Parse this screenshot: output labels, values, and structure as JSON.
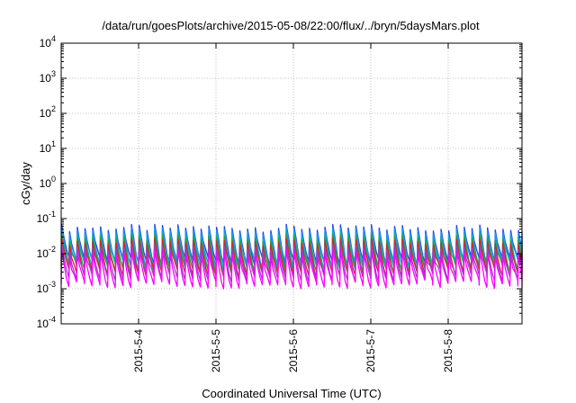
{
  "chart_data": {
    "type": "line",
    "title": "/data/run/goesPlots/archive/2015-05-08/22:00/flux/../bryn/5daysMars.plot",
    "xlabel": "Coordinated Universal Time (UTC)",
    "ylabel": "cGy/day",
    "yscale": "log",
    "ylim": [
      0.0001,
      10000
    ],
    "xlim": [
      "2015-05-03 00:00",
      "2015-05-09 00:00"
    ],
    "grid": true,
    "x_ticks": [
      "2015-5-4",
      "2015-5-5",
      "2015-5-6",
      "2015-5-7",
      "2015-5-8"
    ],
    "y_ticks": [
      {
        "base": "10",
        "exp": "-4"
      },
      {
        "base": "10",
        "exp": "-3"
      },
      {
        "base": "10",
        "exp": "-2"
      },
      {
        "base": "10",
        "exp": "-1"
      },
      {
        "base": "10",
        "exp": "0"
      },
      {
        "base": "10",
        "exp": "1"
      },
      {
        "base": "10",
        "exp": "2"
      },
      {
        "base": "10",
        "exp": "3"
      },
      {
        "base": "10",
        "exp": "4"
      }
    ],
    "pattern": {
      "cycles_per_day": 10,
      "peak_value": 0.05,
      "trough_value": 0.003
    },
    "series": [
      {
        "color": "#2a3fdc",
        "peak": 0.055,
        "trough": 0.0065
      },
      {
        "color": "#1e90ff",
        "peak": 0.045,
        "trough": 0.0055
      },
      {
        "color": "#00b4b4",
        "peak": 0.035,
        "trough": 0.0045
      },
      {
        "color": "#2ca02c",
        "peak": 0.028,
        "trough": 0.0038
      },
      {
        "color": "#d62728",
        "peak": 0.022,
        "trough": 0.003
      },
      {
        "color": "#9a3fd0",
        "peak": 0.015,
        "trough": 0.0022
      },
      {
        "color": "#ff00ff",
        "peak": 0.01,
        "trough": 0.0014
      }
    ]
  }
}
